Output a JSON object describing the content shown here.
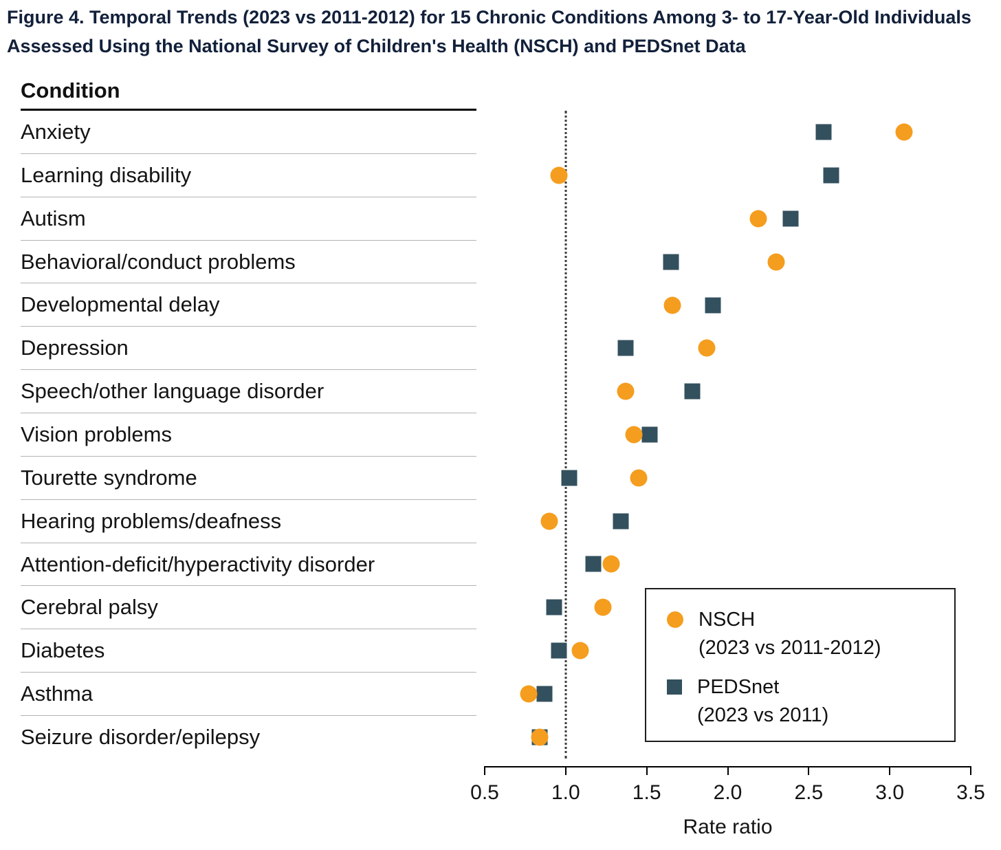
{
  "figure": {
    "title_line1": "Figure 4.  Temporal Trends (2023 vs 2011-2012) for 15 Chronic Conditions Among 3- to 17-Year-Old Individuals",
    "title_line2": "Assessed Using the National Survey of Children's Health (NSCH) and PEDSnet Data"
  },
  "chart_data": {
    "type": "scatter",
    "title": "Temporal Trends (2023 vs 2011-2012) for 15 Chronic Conditions Among 3- to 17-Year-Old Individuals Assessed Using the National Survey of Children's Health (NSCH) and PEDSnet Data",
    "column_header": "Condition",
    "xlabel": "Rate ratio",
    "xlim": [
      0.5,
      3.5
    ],
    "xtick_labels": [
      "0.5",
      "1.0",
      "1.5",
      "2.0",
      "2.5",
      "3.0",
      "3.5"
    ],
    "reference_line_x": 1.0,
    "grid": false,
    "legend_position": "lower-right-inside-plot",
    "categories": [
      "Anxiety",
      "Learning disability",
      "Autism",
      "Behavioral/conduct problems",
      "Developmental delay",
      "Depression",
      "Speech/other language disorder",
      "Vision problems",
      "Tourette syndrome",
      "Hearing problems/deafness",
      "Attention-deficit/hyperactivity disorder",
      "Cerebral palsy",
      "Diabetes",
      "Asthma",
      "Seizure disorder/epilepsy"
    ],
    "series": [
      {
        "name": "NSCH",
        "period": "(2023 vs 2011-2012)",
        "marker": "circle",
        "color": "#F59D1E",
        "values": [
          3.09,
          0.96,
          2.19,
          2.3,
          1.66,
          1.87,
          1.37,
          1.42,
          1.45,
          0.9,
          1.28,
          1.23,
          1.09,
          0.77,
          0.84
        ]
      },
      {
        "name": "PEDSnet",
        "period": "(2023 vs 2011)",
        "marker": "square",
        "color": "#33505E",
        "values": [
          2.59,
          2.64,
          2.39,
          1.65,
          1.91,
          1.37,
          1.78,
          1.52,
          1.02,
          1.34,
          1.17,
          0.93,
          0.96,
          0.87,
          0.84
        ]
      }
    ]
  }
}
